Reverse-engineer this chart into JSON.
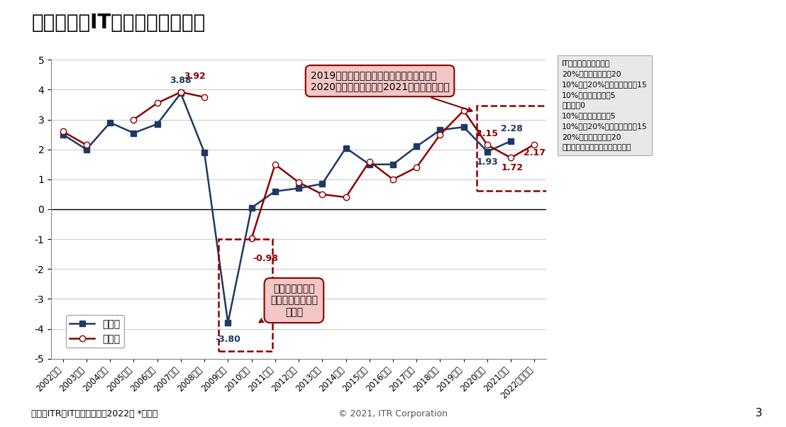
{
  "title": "国内企業のIT投資インデックス",
  "years": [
    "2002年度",
    "2003年度",
    "2004年度",
    "2005年度",
    "2006年度",
    "2007年度",
    "2008年度",
    "2009年度",
    "2010年度",
    "2011年度",
    "2012年度",
    "2013年度",
    "2014年度",
    "2015年度",
    "2016年度",
    "2017年度",
    "2018年度",
    "2019年度",
    "2020年度",
    "2021年度",
    "2022年度予想"
  ],
  "actual": [
    2.5,
    2.0,
    2.9,
    2.55,
    2.85,
    3.88,
    1.9,
    -3.8,
    0.05,
    0.6,
    0.7,
    0.85,
    2.05,
    1.5,
    1.5,
    2.1,
    2.65,
    2.75,
    1.93,
    2.28,
    null
  ],
  "forecast": [
    2.6,
    2.15,
    null,
    3.0,
    3.55,
    3.92,
    3.75,
    null,
    -0.98,
    1.5,
    0.9,
    0.5,
    0.4,
    1.6,
    1.0,
    1.4,
    2.5,
    3.3,
    2.15,
    1.72,
    2.17
  ],
  "actual_color": "#1f3864",
  "forecast_color": "#8B0000",
  "bg_color": "#ffffff",
  "grid_color": "#cccccc",
  "ylim": [
    -5,
    5
  ],
  "yticks": [
    -5,
    -4,
    -3,
    -2,
    -1,
    0,
    1,
    2,
    3,
    4,
    5
  ],
  "source_text": "出典：ITR『IT投資動向調査2022』 *速報値",
  "copyright_text": "© 2021, ITR Corporation",
  "page_text": "3",
  "ann1_text": "2019年度実績からの下落傾向がコロナ禍の\n2020年度も続いたが、2021年度は持ち直す",
  "ann2_text": "マイナス指数は\nリーマンショック\n時のみ",
  "legend_title": "IT投資インデックス：",
  "legend_lines": [
    "20%以上の増加を＋20",
    "10%から20%未満の増加を＋15",
    "10%未満の増加を＋5",
    "横ばいを0",
    "10%未満の減少を－5",
    "10%から20%未満の減少を－15",
    "20%以上の減少を－20",
    "として積み上げ回答数で除した値"
  ],
  "ann_fill": "#f5c6c6",
  "ann_edge": "#8B0000",
  "box_fill": "#e8e8e8",
  "box_edge": "#aaaaaa"
}
